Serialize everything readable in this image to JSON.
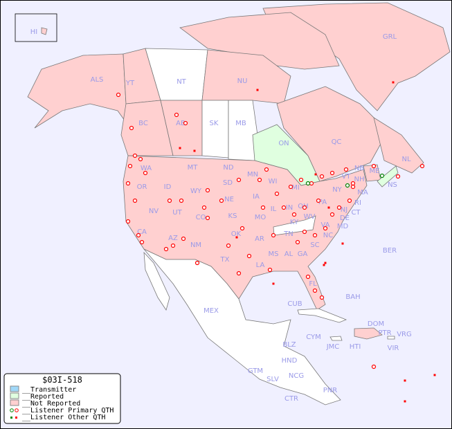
{
  "legend": {
    "title": "$03I-518",
    "items": [
      {
        "label": "__Transmitter",
        "color": "#a0d8f8"
      },
      {
        "label": "__Reported",
        "color": "#e0ffe0"
      },
      {
        "label": "__Not Reported",
        "color": "#ffd0d0"
      },
      {
        "label": "__Listener Primary QTH",
        "marker": "circle"
      },
      {
        "label": "__Listener Other QTH",
        "marker": "square"
      }
    ]
  },
  "colors": {
    "ocean": "#f0f0ff",
    "not_reported": "#ffd0d0",
    "reported": "#e0ffe0",
    "none": "#ffffff",
    "marker": "#ff0000",
    "marker_reported": "#008000",
    "label": "#9a9ae8"
  },
  "regions": {
    "HI": "HI",
    "ALS": "ALS",
    "YT": "YT",
    "NT": "NT",
    "NU": "NU",
    "GRL": "GRL",
    "BC": "BC",
    "AB": "AB",
    "SK": "SK",
    "MB": "MB",
    "ON": "ON",
    "QC": "QC",
    "NL": "NL",
    "NB": "NB",
    "NS": "NS",
    "WA": "WA",
    "OR": "OR",
    "ID": "ID",
    "MT": "MT",
    "WY": "WY",
    "ND": "ND",
    "SD": "SD",
    "MN": "MN",
    "WI": "WI",
    "MI": "MI",
    "NE": "NE",
    "IA": "IA",
    "IL": "IL",
    "IN": "IN",
    "OH": "OH",
    "PA": "PA",
    "NY": "NY",
    "VT": "VT",
    "NH": "NH",
    "ME": "ME",
    "MA": "MA",
    "RI": "RI",
    "CT": "CT",
    "NJ": "NJ",
    "DE": "DE",
    "MD": "MD",
    "VA": "VA",
    "WV": "WV",
    "KY": "KY",
    "TN": "TN",
    "NC": "NC",
    "SC": "SC",
    "GA": "GA",
    "FL": "FL",
    "AL": "AL",
    "MS": "MS",
    "LA": "LA",
    "AR": "AR",
    "MO": "MO",
    "KS": "KS",
    "OK": "OK",
    "TX": "TX",
    "NM": "NM",
    "AZ": "AZ",
    "CO": "CO",
    "UT": "UT",
    "NV": "NV",
    "CA": "CA",
    "MEX": "MEX",
    "CUB": "CUB",
    "BAH": "BAH",
    "BER": "BER",
    "DOM": "DOM",
    "PTR": "PTR",
    "VRG": "VRG",
    "VIR": "VIR",
    "HTI": "HTI",
    "JMC": "JMC",
    "CYM": "CYM",
    "BLZ": "BLZ",
    "HND": "HND",
    "GTM": "GTM",
    "SLV": "SLV",
    "NCG": "NCG",
    "CTR": "CTR",
    "PNR": "PNR"
  }
}
